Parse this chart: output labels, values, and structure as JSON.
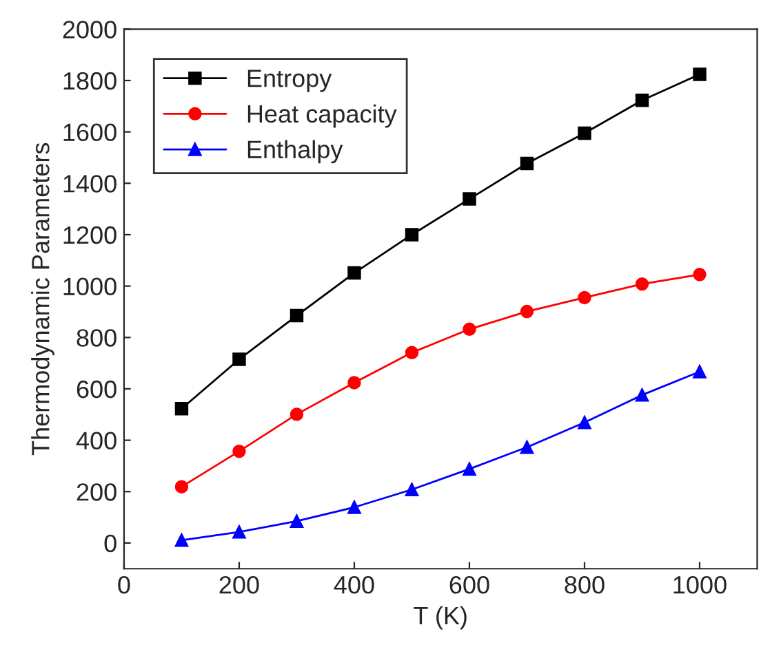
{
  "chart_data": {
    "type": "line",
    "xlabel": "T (K)",
    "ylabel": "Thermodynamic Parameters",
    "x": [
      100,
      200,
      300,
      400,
      500,
      600,
      700,
      800,
      900,
      1000
    ],
    "series": [
      {
        "name": "Entropy",
        "color": "#000000",
        "marker": "square",
        "values": [
          523,
          715,
          885,
          1051,
          1200,
          1339,
          1477,
          1595,
          1723,
          1824
        ]
      },
      {
        "name": "Heat capacity",
        "color": "#ff0000",
        "marker": "circle",
        "values": [
          219,
          357,
          501,
          624,
          741,
          832,
          901,
          955,
          1008,
          1045
        ]
      },
      {
        "name": "Enthalpy",
        "color": "#0000ff",
        "marker": "triangle",
        "values": [
          11,
          43,
          85,
          139,
          208,
          288,
          373,
          469,
          576,
          667
        ]
      }
    ],
    "xlim": [
      0,
      1100
    ],
    "xticks": [
      0,
      200,
      400,
      600,
      800,
      1000
    ],
    "ylim": [
      -100,
      2000
    ],
    "yticks": [
      0,
      200,
      400,
      600,
      800,
      1000,
      1200,
      1400,
      1600,
      1800,
      2000
    ],
    "grid": false,
    "legend": "top left",
    "line_style": "solid"
  }
}
